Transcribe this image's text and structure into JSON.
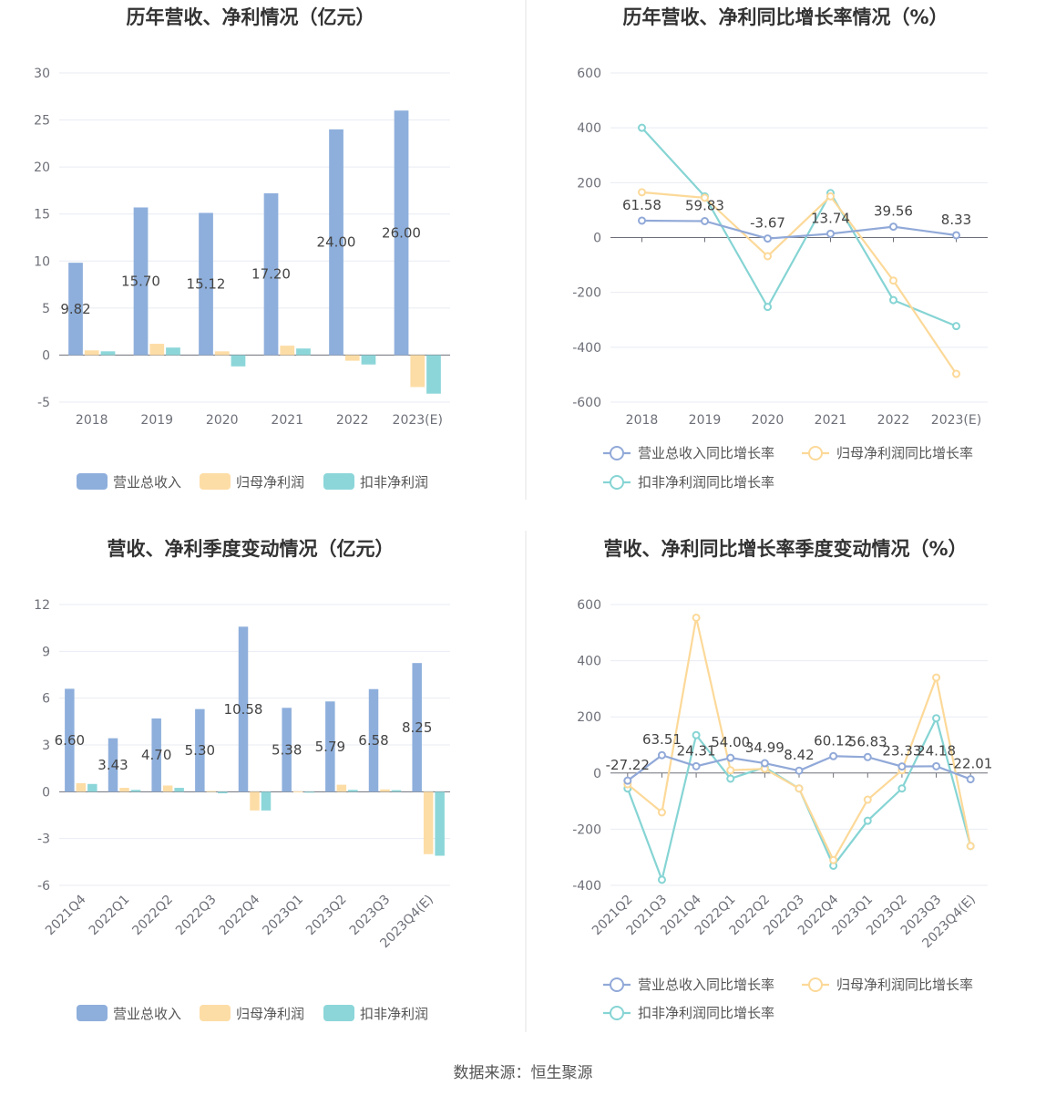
{
  "colors": {
    "revenue_bar": "#8eafdc",
    "parent_bar": "#fddda6",
    "deducted_bar": "#8cd6d9",
    "revenue_line": "#91a9d8",
    "parent_line": "#fcd999",
    "deducted_line": "#86d4d4",
    "grid": "#e8ebf2",
    "axis": "#6e7079",
    "divider": "#e3e3e3"
  },
  "footer": {
    "source": "数据来源：恒生聚源"
  },
  "chart_data": [
    {
      "id": "annual_values",
      "type": "bar",
      "title": "历年营收、净利情况（亿元）",
      "categories": [
        "2018",
        "2019",
        "2020",
        "2021",
        "2022",
        "2023(E)"
      ],
      "ylim": [
        -5,
        30
      ],
      "yticks": [
        -5,
        0,
        5,
        10,
        15,
        20,
        25,
        30
      ],
      "series": [
        {
          "name": "营业总收入",
          "values": [
            9.82,
            15.7,
            15.12,
            17.2,
            24.0,
            26.0
          ],
          "labels": [
            "9.82",
            "15.70",
            "15.12",
            "17.20",
            "24.00",
            "26.00"
          ]
        },
        {
          "name": "归母净利润",
          "values": [
            0.5,
            1.2,
            0.4,
            1.0,
            -0.6,
            -3.4
          ]
        },
        {
          "name": "扣非净利润",
          "values": [
            0.4,
            0.8,
            -1.2,
            0.7,
            -1.0,
            -4.1
          ]
        }
      ],
      "legend": "bottom",
      "grid": true
    },
    {
      "id": "annual_growth",
      "type": "line",
      "title": "历年营收、净利同比增长率情况（%）",
      "categories": [
        "2018",
        "2019",
        "2020",
        "2021",
        "2022",
        "2023(E)"
      ],
      "ylim": [
        -600,
        600
      ],
      "yticks": [
        -600,
        -400,
        -200,
        0,
        200,
        400,
        600
      ],
      "series": [
        {
          "name": "营业总收入同比增长率",
          "values": [
            61.58,
            59.83,
            -3.67,
            13.74,
            39.56,
            8.33
          ],
          "labels": [
            "61.58",
            "59.83",
            "-3.67",
            "13.74",
            "39.56",
            "8.33"
          ]
        },
        {
          "name": "归母净利润同比增长率",
          "values": [
            165,
            145,
            -68,
            150,
            -157,
            -497
          ]
        },
        {
          "name": "扣非净利润同比增长率",
          "values": [
            400,
            150,
            -253,
            162,
            -228,
            -323
          ]
        }
      ],
      "legend": "bottom",
      "grid": true
    },
    {
      "id": "quarterly_values",
      "type": "bar",
      "title": "营收、净利季度变动情况（亿元）",
      "categories": [
        "2021Q4",
        "2022Q1",
        "2022Q2",
        "2022Q3",
        "2022Q4",
        "2023Q1",
        "2023Q2",
        "2023Q3",
        "2023Q4(E)"
      ],
      "ylim": [
        -6,
        12
      ],
      "yticks": [
        -6,
        -3,
        0,
        3,
        6,
        9,
        12
      ],
      "series": [
        {
          "name": "营业总收入",
          "values": [
            6.6,
            3.43,
            4.7,
            5.3,
            10.58,
            5.38,
            5.79,
            6.58,
            8.25
          ],
          "labels": [
            "6.60",
            "3.43",
            "4.70",
            "5.30",
            "10.58",
            "5.38",
            "5.79",
            "6.58",
            "8.25"
          ]
        },
        {
          "name": "归母净利润",
          "values": [
            0.55,
            0.25,
            0.4,
            0.05,
            -1.2,
            0.02,
            0.45,
            0.15,
            -4.0
          ]
        },
        {
          "name": "扣非净利润",
          "values": [
            0.5,
            0.12,
            0.25,
            -0.1,
            -1.2,
            -0.05,
            0.12,
            0.1,
            -4.1
          ]
        }
      ],
      "legend": "bottom",
      "grid": true
    },
    {
      "id": "quarterly_growth",
      "type": "line",
      "title": "营收、净利同比增长率季度变动情况（%）",
      "categories": [
        "2021Q2",
        "2021Q3",
        "2021Q4",
        "2022Q1",
        "2022Q2",
        "2022Q3",
        "2022Q4",
        "2023Q1",
        "2023Q2",
        "2023Q3",
        "2023Q4(E)"
      ],
      "ylim": [
        -400,
        600
      ],
      "yticks": [
        -400,
        -200,
        0,
        200,
        400,
        600
      ],
      "series": [
        {
          "name": "营业总收入同比增长率",
          "values": [
            -27.22,
            63.51,
            24.31,
            54.0,
            34.99,
            8.42,
            60.12,
            56.83,
            23.33,
            24.18,
            -22.01
          ],
          "labels": [
            "-27.22",
            "63.51",
            "24.31",
            "54.00",
            "34.99",
            "8.42",
            "60.12",
            "56.83",
            "23.33",
            "24.18",
            "-22.01"
          ]
        },
        {
          "name": "归母净利润同比增长率",
          "values": [
            -40,
            -140,
            553,
            10,
            15,
            -55,
            -310,
            -95,
            10,
            340,
            -260
          ]
        },
        {
          "name": "扣非净利润同比增长率",
          "values": [
            -55,
            -380,
            135,
            -20,
            20,
            -55,
            -330,
            -170,
            -55,
            195,
            -260
          ]
        }
      ],
      "legend": "bottom",
      "grid": true
    }
  ]
}
